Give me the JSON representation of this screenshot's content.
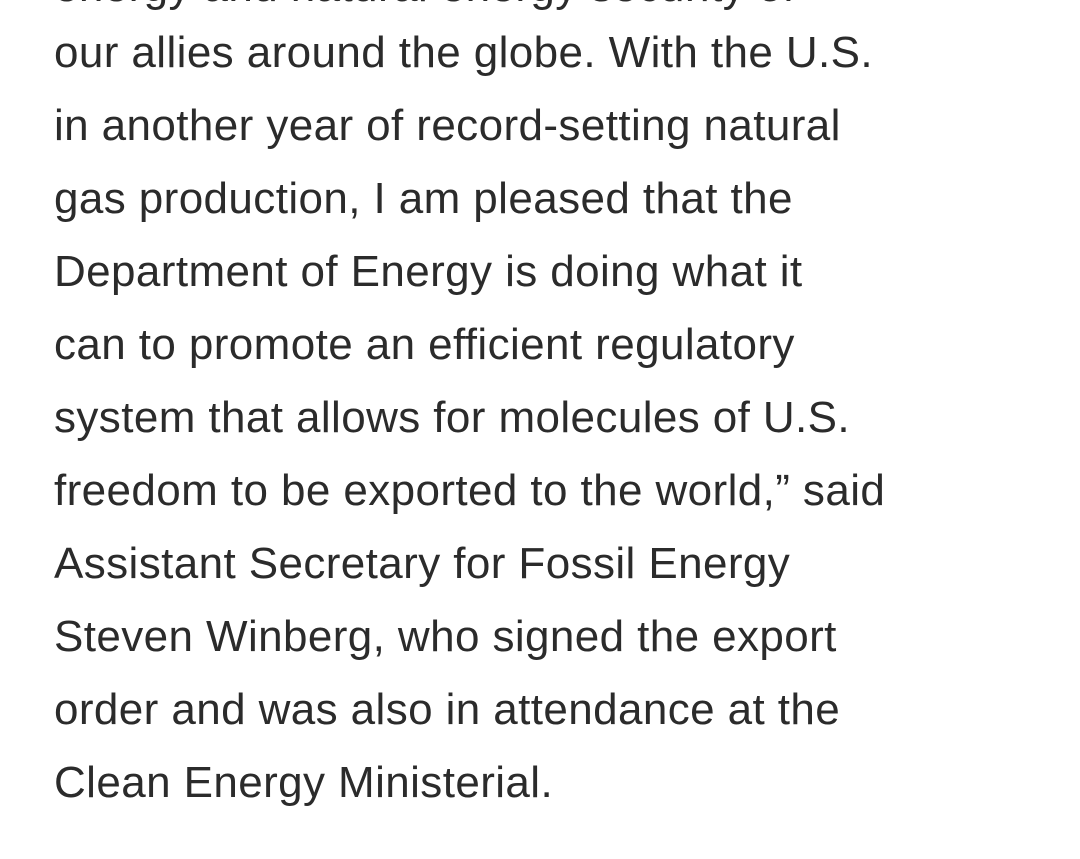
{
  "article": {
    "cut_off_line": "energy and natural energy security of",
    "lines": [
      "our allies around the globe. With the U.S.",
      "in another year of record-setting natural",
      "gas production, I am pleased that the",
      "Department of Energy is doing what it",
      "can to promote an efficient regulatory",
      "system that allows for molecules of U.S.",
      "freedom to be exported to the world,” said",
      "Assistant Secretary for Fossil Energy",
      "Steven Winberg, who signed the export",
      "order and was also in attendance at the",
      "Clean Energy Ministerial."
    ]
  }
}
